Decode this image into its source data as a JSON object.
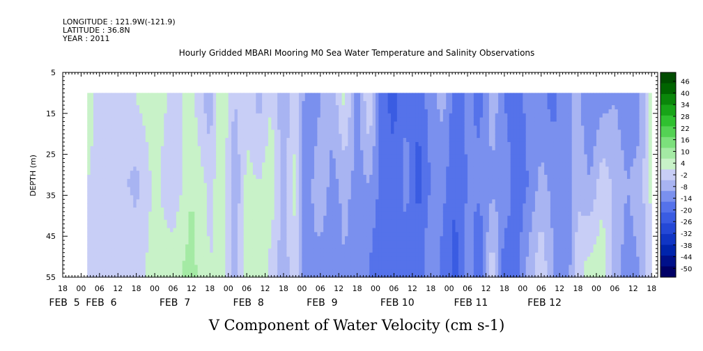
{
  "header": {
    "longitude": "LONGITUDE : 121.9W(-121.9)",
    "latitude": "LATITUDE : 36.8N",
    "year": "YEAR : 2011"
  },
  "chart_data": {
    "type": "heatmap",
    "title": "Hourly Gridded MBARI Mooring M0 Sea Water Temperature and Salinity Observations",
    "xlabel": "V Component of Water Velocity (cm s-1)",
    "ylabel": "DEPTH (m)",
    "y_reversed": true,
    "ylim": [
      5,
      55
    ],
    "y_ticks": [
      5,
      15,
      25,
      35,
      45,
      55
    ],
    "data_depth_range": [
      10,
      55
    ],
    "x_start_hour": -6,
    "x_end_hour": 188,
    "x_hour_ticks": [
      "18",
      "00",
      "06",
      "12",
      "18",
      "00",
      "06",
      "12",
      "18",
      "00",
      "06",
      "12",
      "18",
      "00",
      "06",
      "12",
      "18",
      "00",
      "06",
      "12",
      "18",
      "00",
      "06",
      "12",
      "18",
      "00",
      "06",
      "12",
      "18",
      "00",
      "06",
      "12",
      "18"
    ],
    "x_day_labels": [
      {
        "label": "FEB  5",
        "hour": 0
      },
      {
        "label": "FEB  6",
        "hour": 12
      },
      {
        "label": "FEB  7",
        "hour": 36
      },
      {
        "label": "FEB  8",
        "hour": 60
      },
      {
        "label": "FEB  9",
        "hour": 84
      },
      {
        "label": "FEB 10",
        "hour": 108
      },
      {
        "label": "FEB 11",
        "hour": 132
      },
      {
        "label": "FEB 12",
        "hour": 156
      }
    ],
    "profile_hours": [
      2,
      10,
      18,
      24,
      30,
      36,
      42,
      46,
      50,
      54,
      58,
      62,
      66,
      70,
      72,
      74,
      78,
      82,
      86,
      90,
      94,
      98,
      102,
      106,
      110,
      114,
      118,
      122,
      126,
      130,
      134,
      138,
      142,
      146,
      150,
      154,
      158,
      162,
      166,
      170,
      174,
      178,
      182,
      186
    ],
    "profile_values": [
      [
        6,
        4,
        0
      ],
      [
        -2,
        2,
        4
      ],
      [
        4,
        -4,
        2
      ],
      [
        8,
        6,
        6
      ],
      [
        2,
        -2,
        8
      ],
      [
        6,
        10,
        12
      ],
      [
        -6,
        2,
        4
      ],
      [
        10,
        8,
        6
      ],
      [
        -2,
        -8,
        -4
      ],
      [
        2,
        6,
        8
      ],
      [
        -4,
        4,
        10
      ],
      [
        4,
        8,
        2
      ],
      [
        -8,
        -4,
        -6
      ],
      [
        4,
        6,
        4
      ],
      [
        -6,
        -8,
        -10
      ],
      [
        -14,
        -10,
        -8
      ],
      [
        -8,
        -4,
        -10
      ],
      [
        -6,
        -10,
        -12
      ],
      [
        6,
        -6,
        -8
      ],
      [
        -12,
        -10,
        -14
      ],
      [
        4,
        -8,
        -14
      ],
      [
        -18,
        -16,
        -20
      ],
      [
        -22,
        -18,
        -20
      ],
      [
        -14,
        -12,
        -16
      ],
      [
        -20,
        -22,
        -18
      ],
      [
        -10,
        -14,
        -8
      ],
      [
        -6,
        -12,
        -16
      ],
      [
        -18,
        -20,
        -22
      ],
      [
        -12,
        -14,
        -10
      ],
      [
        -16,
        -12,
        -20
      ],
      [
        -4,
        -10,
        2
      ],
      [
        -14,
        -8,
        -18
      ],
      [
        -20,
        -18,
        -16
      ],
      [
        -10,
        -14,
        -6
      ],
      [
        -12,
        -6,
        2
      ],
      [
        -16,
        -10,
        -8
      ],
      [
        -10,
        -12,
        -14
      ],
      [
        -6,
        -4,
        2
      ],
      [
        -14,
        -8,
        6
      ],
      [
        -10,
        2,
        8
      ],
      [
        -8,
        -4,
        -6
      ],
      [
        -12,
        -8,
        -10
      ],
      [
        -10,
        -6,
        -8
      ],
      [
        8,
        6,
        4
      ]
    ],
    "profile_depths": [
      12,
      32,
      52
    ],
    "colorbar": {
      "levels": [
        -50,
        -44,
        -38,
        -32,
        -26,
        -20,
        -14,
        -8,
        -2,
        4,
        10,
        16,
        22,
        28,
        34,
        40,
        46
      ],
      "labels": [
        "46",
        "40",
        "34",
        "28",
        "22",
        "16",
        "10",
        "4",
        "-2",
        "-8",
        "-14",
        "-20",
        "-26",
        "-32",
        "-38",
        "-44",
        "-50"
      ],
      "colors": [
        "#000066",
        "#00108a",
        "#0024ac",
        "#1035c4",
        "#2448d6",
        "#3a5ce2",
        "#5572ea",
        "#7a90ee",
        "#a8b4f2",
        "#c8cef6",
        "#c8f2c8",
        "#a4eaa4",
        "#7ce07c",
        "#54d254",
        "#30c030",
        "#18a418",
        "#0a860a",
        "#006400",
        "#004c00"
      ]
    }
  }
}
